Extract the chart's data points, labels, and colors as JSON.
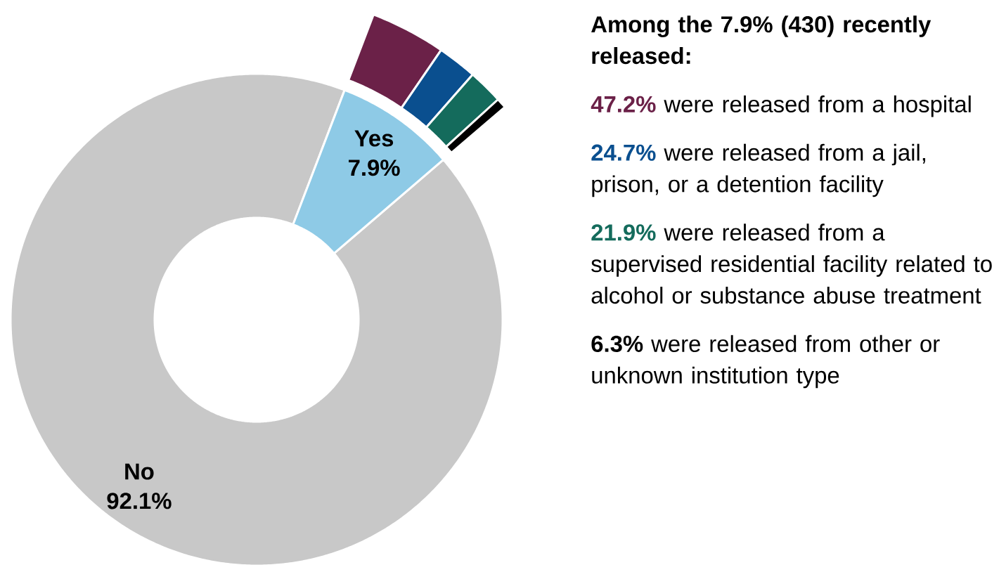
{
  "chart_data": [
    {
      "type": "donut",
      "categories": [
        "No",
        "Yes"
      ],
      "values": [
        92.1,
        7.9
      ],
      "colors": [
        "#c8c8c8",
        "#8ecae6"
      ],
      "value_labels": [
        "92.1%",
        "7.9%"
      ]
    },
    {
      "type": "donut",
      "title": "Among the 7.9% (430) recently released:",
      "values": [
        47.2,
        24.7,
        21.9,
        6.3
      ],
      "colors": [
        "#6b2148",
        "#0a4f8f",
        "#146b5c",
        "#000000"
      ],
      "annotations": [
        "47.2%",
        "were released from a hospital",
        "24.7%",
        "were released from a jail, prison, or a detention facility",
        "21.9%",
        "were released from a supervised residential facility related to alcohol or substance abuse treatment",
        "6.3%",
        "were released from other or unknown institution type"
      ]
    }
  ]
}
